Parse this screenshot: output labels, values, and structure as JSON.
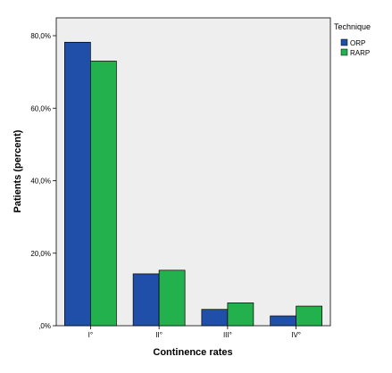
{
  "chart_data": {
    "type": "bar",
    "categories": [
      "I°",
      "II°",
      "III°",
      "IV°"
    ],
    "series": [
      {
        "name": "ORP",
        "values": [
          78.2,
          14.3,
          4.5,
          2.7
        ],
        "color": "#1f4fa8"
      },
      {
        "name": "RARP",
        "values": [
          73.0,
          15.3,
          6.3,
          5.4
        ],
        "color": "#23b14d"
      }
    ],
    "xlabel": "Continence rates",
    "ylabel": "Patients (percent)",
    "ylim": [
      0,
      80
    ],
    "yticks": [
      {
        "value": 0,
        "label": ",0%"
      },
      {
        "value": 20,
        "label": "20,0%"
      },
      {
        "value": 40,
        "label": "40,0%"
      },
      {
        "value": 60,
        "label": "60,0%"
      },
      {
        "value": 80,
        "label": "80,0%"
      }
    ],
    "legend": {
      "title": "Technique",
      "placement": "right"
    },
    "plot_background": "#eeeeee",
    "grid": false
  }
}
